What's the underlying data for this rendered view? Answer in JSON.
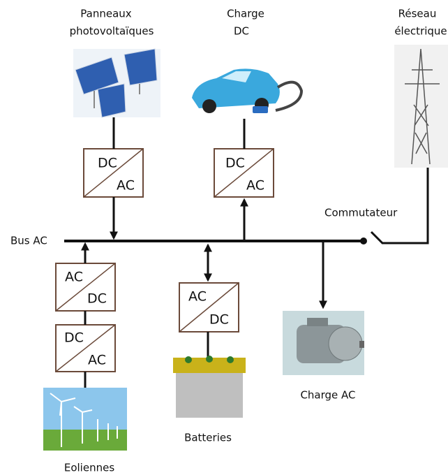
{
  "nodes": {
    "pv": {
      "label": [
        "Panneaux",
        "photovoltaïques"
      ]
    },
    "dc_load": {
      "label": [
        "Charge",
        "DC"
      ]
    },
    "grid": {
      "label": [
        "Réseau",
        "électrique"
      ]
    },
    "switch": {
      "label": "Commutateur"
    },
    "bus": {
      "label": "Bus AC"
    },
    "wind": {
      "label": "Eoliennes"
    },
    "battery": {
      "label": "Batteries"
    },
    "ac_load": {
      "label": "Charge AC"
    }
  },
  "converters": [
    {
      "top": "DC",
      "bottom": "AC"
    },
    {
      "top": "DC",
      "bottom": "AC"
    },
    {
      "top": "AC",
      "bottom": "DC"
    },
    {
      "top": "DC",
      "bottom": "AC"
    },
    {
      "top": "AC",
      "bottom": "DC"
    }
  ]
}
